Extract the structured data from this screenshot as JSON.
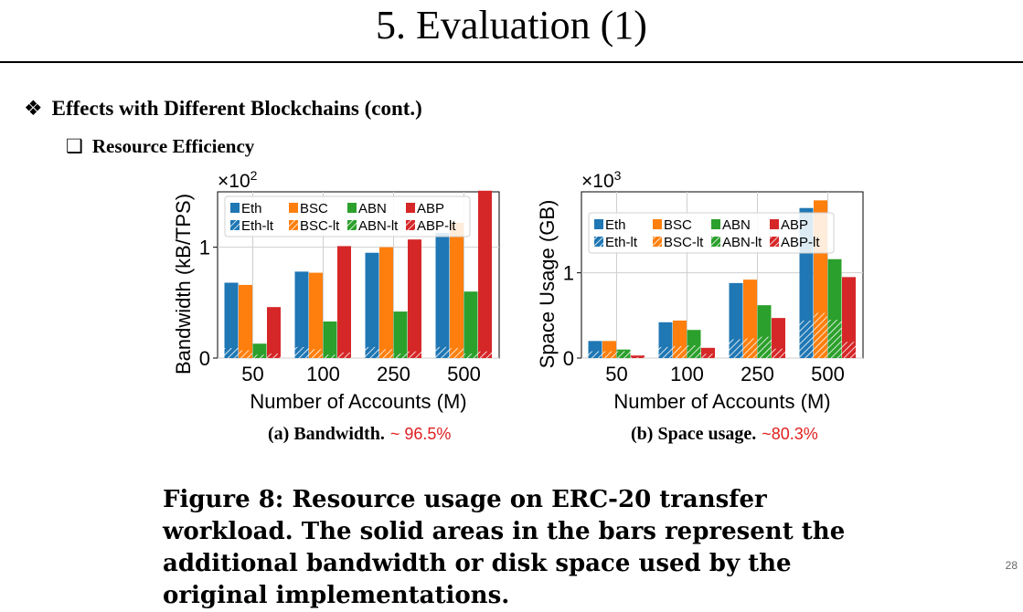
{
  "slide": {
    "title": "5. Evaluation (1)",
    "bullet1": "Effects with Different Blockchains (cont.)",
    "bullet1_icon": "diamond-bullet-icon",
    "bullet2": "Resource Efficiency",
    "bullet2_icon": "square-bullet-icon",
    "figure_caption": "Figure 8: Resource usage on ERC-20 transfer workload. The solid areas in the bars represent the additional bandwidth or disk space used by the original implementations.",
    "page_number": "28"
  },
  "subcaptions": [
    {
      "label": "(a) Bandwidth.",
      "note": "~ 96.5%"
    },
    {
      "label": "(b) Space usage.",
      "note": "~80.3%"
    }
  ],
  "chart_data": [
    {
      "type": "bar",
      "title": "",
      "xlabel": "Number of Accounts (M)",
      "ylabel": "Bandwidth (kB/TPS)",
      "multiplier": "×10",
      "multiplier_exp": "2",
      "categories": [
        "50",
        "100",
        "250",
        "500"
      ],
      "ylim": [
        0,
        1.5
      ],
      "yticks": [
        0,
        1
      ],
      "ytick_labels": [
        "0",
        "1"
      ],
      "grid": true,
      "legend_position": "top",
      "series": [
        {
          "name": "Eth",
          "lt_name": "Eth-lt",
          "color": "#1f77b4",
          "values": [
            0.68,
            0.78,
            0.95,
            1.13
          ],
          "lt_values": [
            0.09,
            0.1,
            0.1,
            0.1
          ]
        },
        {
          "name": "BSC",
          "lt_name": "BSC-lt",
          "color": "#ff7f0e",
          "values": [
            0.66,
            0.77,
            1.0,
            1.22
          ],
          "lt_values": [
            0.07,
            0.08,
            0.08,
            0.09
          ]
        },
        {
          "name": "ABN",
          "lt_name": "ABN-lt",
          "color": "#2ca02c",
          "values": [
            0.13,
            0.33,
            0.42,
            0.6
          ],
          "lt_values": [
            0.03,
            0.03,
            0.04,
            0.04
          ]
        },
        {
          "name": "ABP",
          "lt_name": "ABP-lt",
          "color": "#d62728",
          "values": [
            0.46,
            1.01,
            1.07,
            1.51
          ],
          "lt_values": [
            0.04,
            0.05,
            0.06,
            0.06
          ]
        }
      ]
    },
    {
      "type": "bar",
      "title": "",
      "xlabel": "Number of Accounts (M)",
      "ylabel": "Space Usage (GB)",
      "multiplier": "×10",
      "multiplier_exp": "3",
      "categories": [
        "50",
        "100",
        "250",
        "500"
      ],
      "ylim": [
        0,
        1.95
      ],
      "yticks": [
        0,
        1
      ],
      "ytick_labels": [
        "0",
        "1"
      ],
      "grid": true,
      "legend_position": "top",
      "series": [
        {
          "name": "Eth",
          "lt_name": "Eth-lt",
          "color": "#1f77b4",
          "values": [
            0.2,
            0.42,
            0.88,
            1.76
          ],
          "lt_values": [
            0.08,
            0.13,
            0.22,
            0.44
          ]
        },
        {
          "name": "BSC",
          "lt_name": "BSC-lt",
          "color": "#ff7f0e",
          "values": [
            0.2,
            0.44,
            0.92,
            1.85
          ],
          "lt_values": [
            0.08,
            0.14,
            0.23,
            0.53
          ]
        },
        {
          "name": "ABN",
          "lt_name": "ABN-lt",
          "color": "#2ca02c",
          "values": [
            0.1,
            0.33,
            0.62,
            1.16
          ],
          "lt_values": [
            0.08,
            0.15,
            0.25,
            0.45
          ]
        },
        {
          "name": "ABP",
          "lt_name": "ABP-lt",
          "color": "#d62728",
          "values": [
            0.03,
            0.12,
            0.47,
            0.95
          ],
          "lt_values": [
            0.01,
            0.05,
            0.11,
            0.19
          ]
        }
      ]
    }
  ]
}
